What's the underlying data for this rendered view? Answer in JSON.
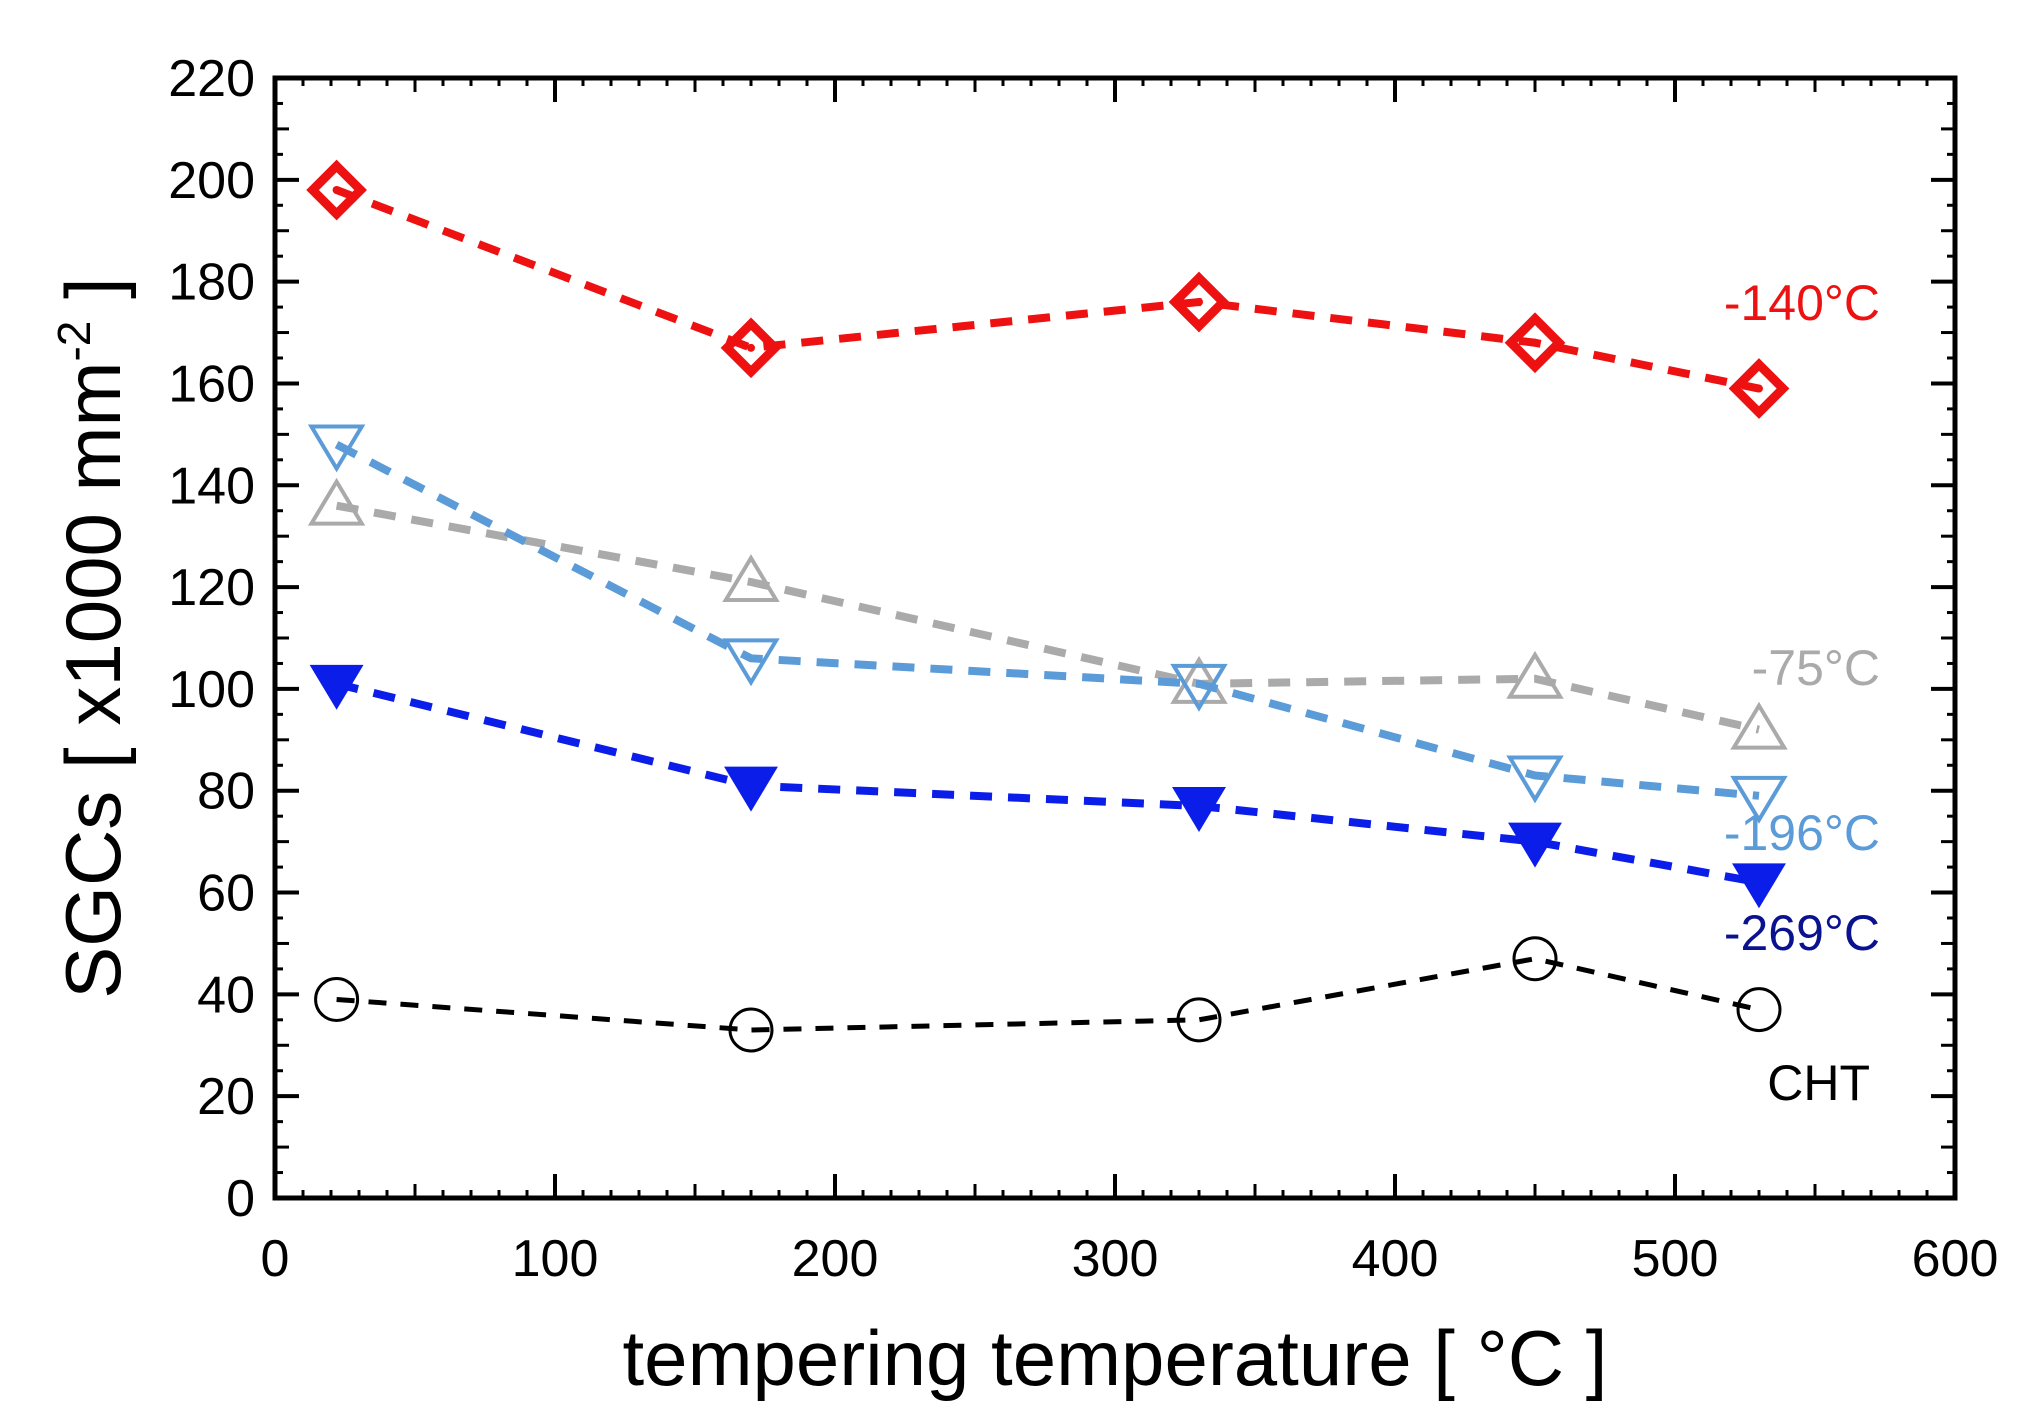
{
  "chart_data": {
    "type": "line",
    "title": "",
    "xlabel": "tempering temperature  [ °C ]",
    "ylabel": "SGCs   [ x1000 mm",
    "ylabel_superscript": "-2",
    "ylabel_close": " ]",
    "xlim": [
      0,
      600
    ],
    "ylim": [
      0,
      220
    ],
    "xticks": [
      0,
      100,
      200,
      300,
      400,
      500,
      600
    ],
    "yticks": [
      0,
      20,
      40,
      60,
      80,
      100,
      120,
      140,
      160,
      180,
      200,
      220
    ],
    "grid": false,
    "x": [
      22,
      170,
      330,
      450,
      530
    ],
    "series": [
      {
        "name": "-140°C",
        "marker": "diamond",
        "filled": false,
        "color": "#ee1111",
        "values": [
          198,
          167,
          176,
          168,
          159
        ]
      },
      {
        "name": "-75°C",
        "marker": "triangle-up",
        "filled": false,
        "color": "#aaaaaa",
        "values": [
          136,
          121,
          101,
          102,
          92
        ]
      },
      {
        "name": "-196°C",
        "marker": "triangle-down",
        "filled": false,
        "color": "#5b9bd8",
        "values": [
          148,
          106,
          101,
          83,
          79
        ]
      },
      {
        "name": "-269°C",
        "marker": "triangle-down",
        "filled": true,
        "color": "#0b1de8",
        "label_color": "#0b1290",
        "values": [
          101,
          81,
          77,
          70,
          62
        ]
      },
      {
        "name": "CHT",
        "marker": "circle",
        "filled": false,
        "color": "#000000",
        "values": [
          39,
          33,
          35,
          47,
          37
        ]
      }
    ]
  }
}
